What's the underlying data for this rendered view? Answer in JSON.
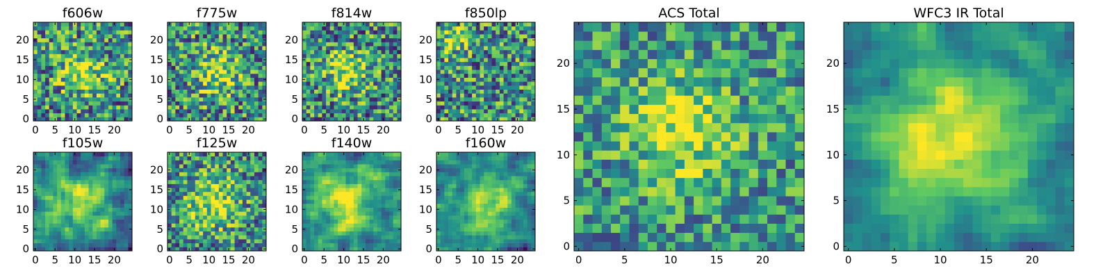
{
  "chart_data": [
    {
      "type": "heatmap",
      "title": "f606w",
      "xlim": [
        0,
        25
      ],
      "ylim": [
        0,
        25
      ],
      "xticks": [
        "0",
        "5",
        "10",
        "15",
        "20"
      ],
      "yticks": [
        "0",
        "5",
        "10",
        "15",
        "20"
      ],
      "grid": "24x24 pixel cutout, faint source near center (12,12)",
      "source_peak": [
        12,
        12
      ],
      "brightness": "noisy, weak central source"
    },
    {
      "type": "heatmap",
      "title": "f775w",
      "xlim": [
        0,
        25
      ],
      "ylim": [
        0,
        25
      ],
      "xticks": [
        "0",
        "5",
        "10",
        "15",
        "20"
      ],
      "yticks": [
        "0",
        "5",
        "10",
        "15",
        "20"
      ],
      "source_peak": [
        12,
        12
      ],
      "brightness": "noisy, weak central source"
    },
    {
      "type": "heatmap",
      "title": "f814w",
      "xlim": [
        0,
        25
      ],
      "ylim": [
        0,
        25
      ],
      "xticks": [
        "0",
        "5",
        "10",
        "15",
        "20"
      ],
      "yticks": [
        "0",
        "5",
        "10",
        "15",
        "20"
      ],
      "source_peak": [
        11,
        12
      ],
      "brightness": "noisy, weak central source"
    },
    {
      "type": "heatmap",
      "title": "f850lp",
      "xlim": [
        0,
        25
      ],
      "ylim": [
        0,
        25
      ],
      "xticks": [
        "0",
        "5",
        "10",
        "15",
        "20"
      ],
      "yticks": [
        "0",
        "5",
        "10",
        "15",
        "20"
      ],
      "source_peak": [
        4,
        20
      ],
      "brightness": "noisy, bright patch top-left"
    },
    {
      "type": "heatmap",
      "title": "f105w",
      "xlim": [
        0,
        25
      ],
      "ylim": [
        0,
        25
      ],
      "xticks": [
        "0",
        "5",
        "10",
        "15",
        "20"
      ],
      "yticks": [
        "0",
        "5",
        "10",
        "15",
        "20"
      ],
      "source_peak": [
        12,
        12
      ],
      "brightness": "smoother, central source"
    },
    {
      "type": "heatmap",
      "title": "f125w",
      "xlim": [
        0,
        25
      ],
      "ylim": [
        0,
        25
      ],
      "xticks": [
        "0",
        "5",
        "10",
        "15",
        "20"
      ],
      "yticks": [
        "0",
        "5",
        "10",
        "15",
        "20"
      ],
      "source_peak": [
        11,
        12
      ],
      "brightness": "central source"
    },
    {
      "type": "heatmap",
      "title": "f140w",
      "xlim": [
        0,
        25
      ],
      "ylim": [
        0,
        25
      ],
      "xticks": [
        "0",
        "5",
        "10",
        "15",
        "20"
      ],
      "yticks": [
        "0",
        "5",
        "10",
        "15",
        "20"
      ],
      "source_peak": [
        11,
        12
      ],
      "brightness": "central source"
    },
    {
      "type": "heatmap",
      "title": "f160w",
      "xlim": [
        0,
        25
      ],
      "ylim": [
        0,
        25
      ],
      "xticks": [
        "0",
        "5",
        "10",
        "15",
        "20"
      ],
      "yticks": [
        "0",
        "5",
        "10",
        "15",
        "20"
      ],
      "source_peak": [
        13,
        11
      ],
      "brightness": "bright central source"
    },
    {
      "type": "heatmap",
      "title": "ACS Total",
      "xlim": [
        0,
        25
      ],
      "ylim": [
        0,
        25
      ],
      "xticks": [
        "0",
        "5",
        "10",
        "15",
        "20"
      ],
      "yticks": [
        "0",
        "5",
        "10",
        "15",
        "20"
      ],
      "source_peak": [
        11,
        13
      ],
      "brightness": "brighter central source, noisy background"
    },
    {
      "type": "heatmap",
      "title": "WFC3 IR Total",
      "xlim": [
        0,
        25
      ],
      "ylim": [
        0,
        25
      ],
      "xticks": [
        "0",
        "5",
        "10",
        "15",
        "20"
      ],
      "yticks": [
        "0",
        "5",
        "10",
        "15",
        "20"
      ],
      "source_peak": [
        12,
        12
      ],
      "brightness": "smooth bright central source"
    }
  ],
  "colormap": [
    "#440154",
    "#3b528b",
    "#21918c",
    "#5ec962",
    "#fde725"
  ]
}
